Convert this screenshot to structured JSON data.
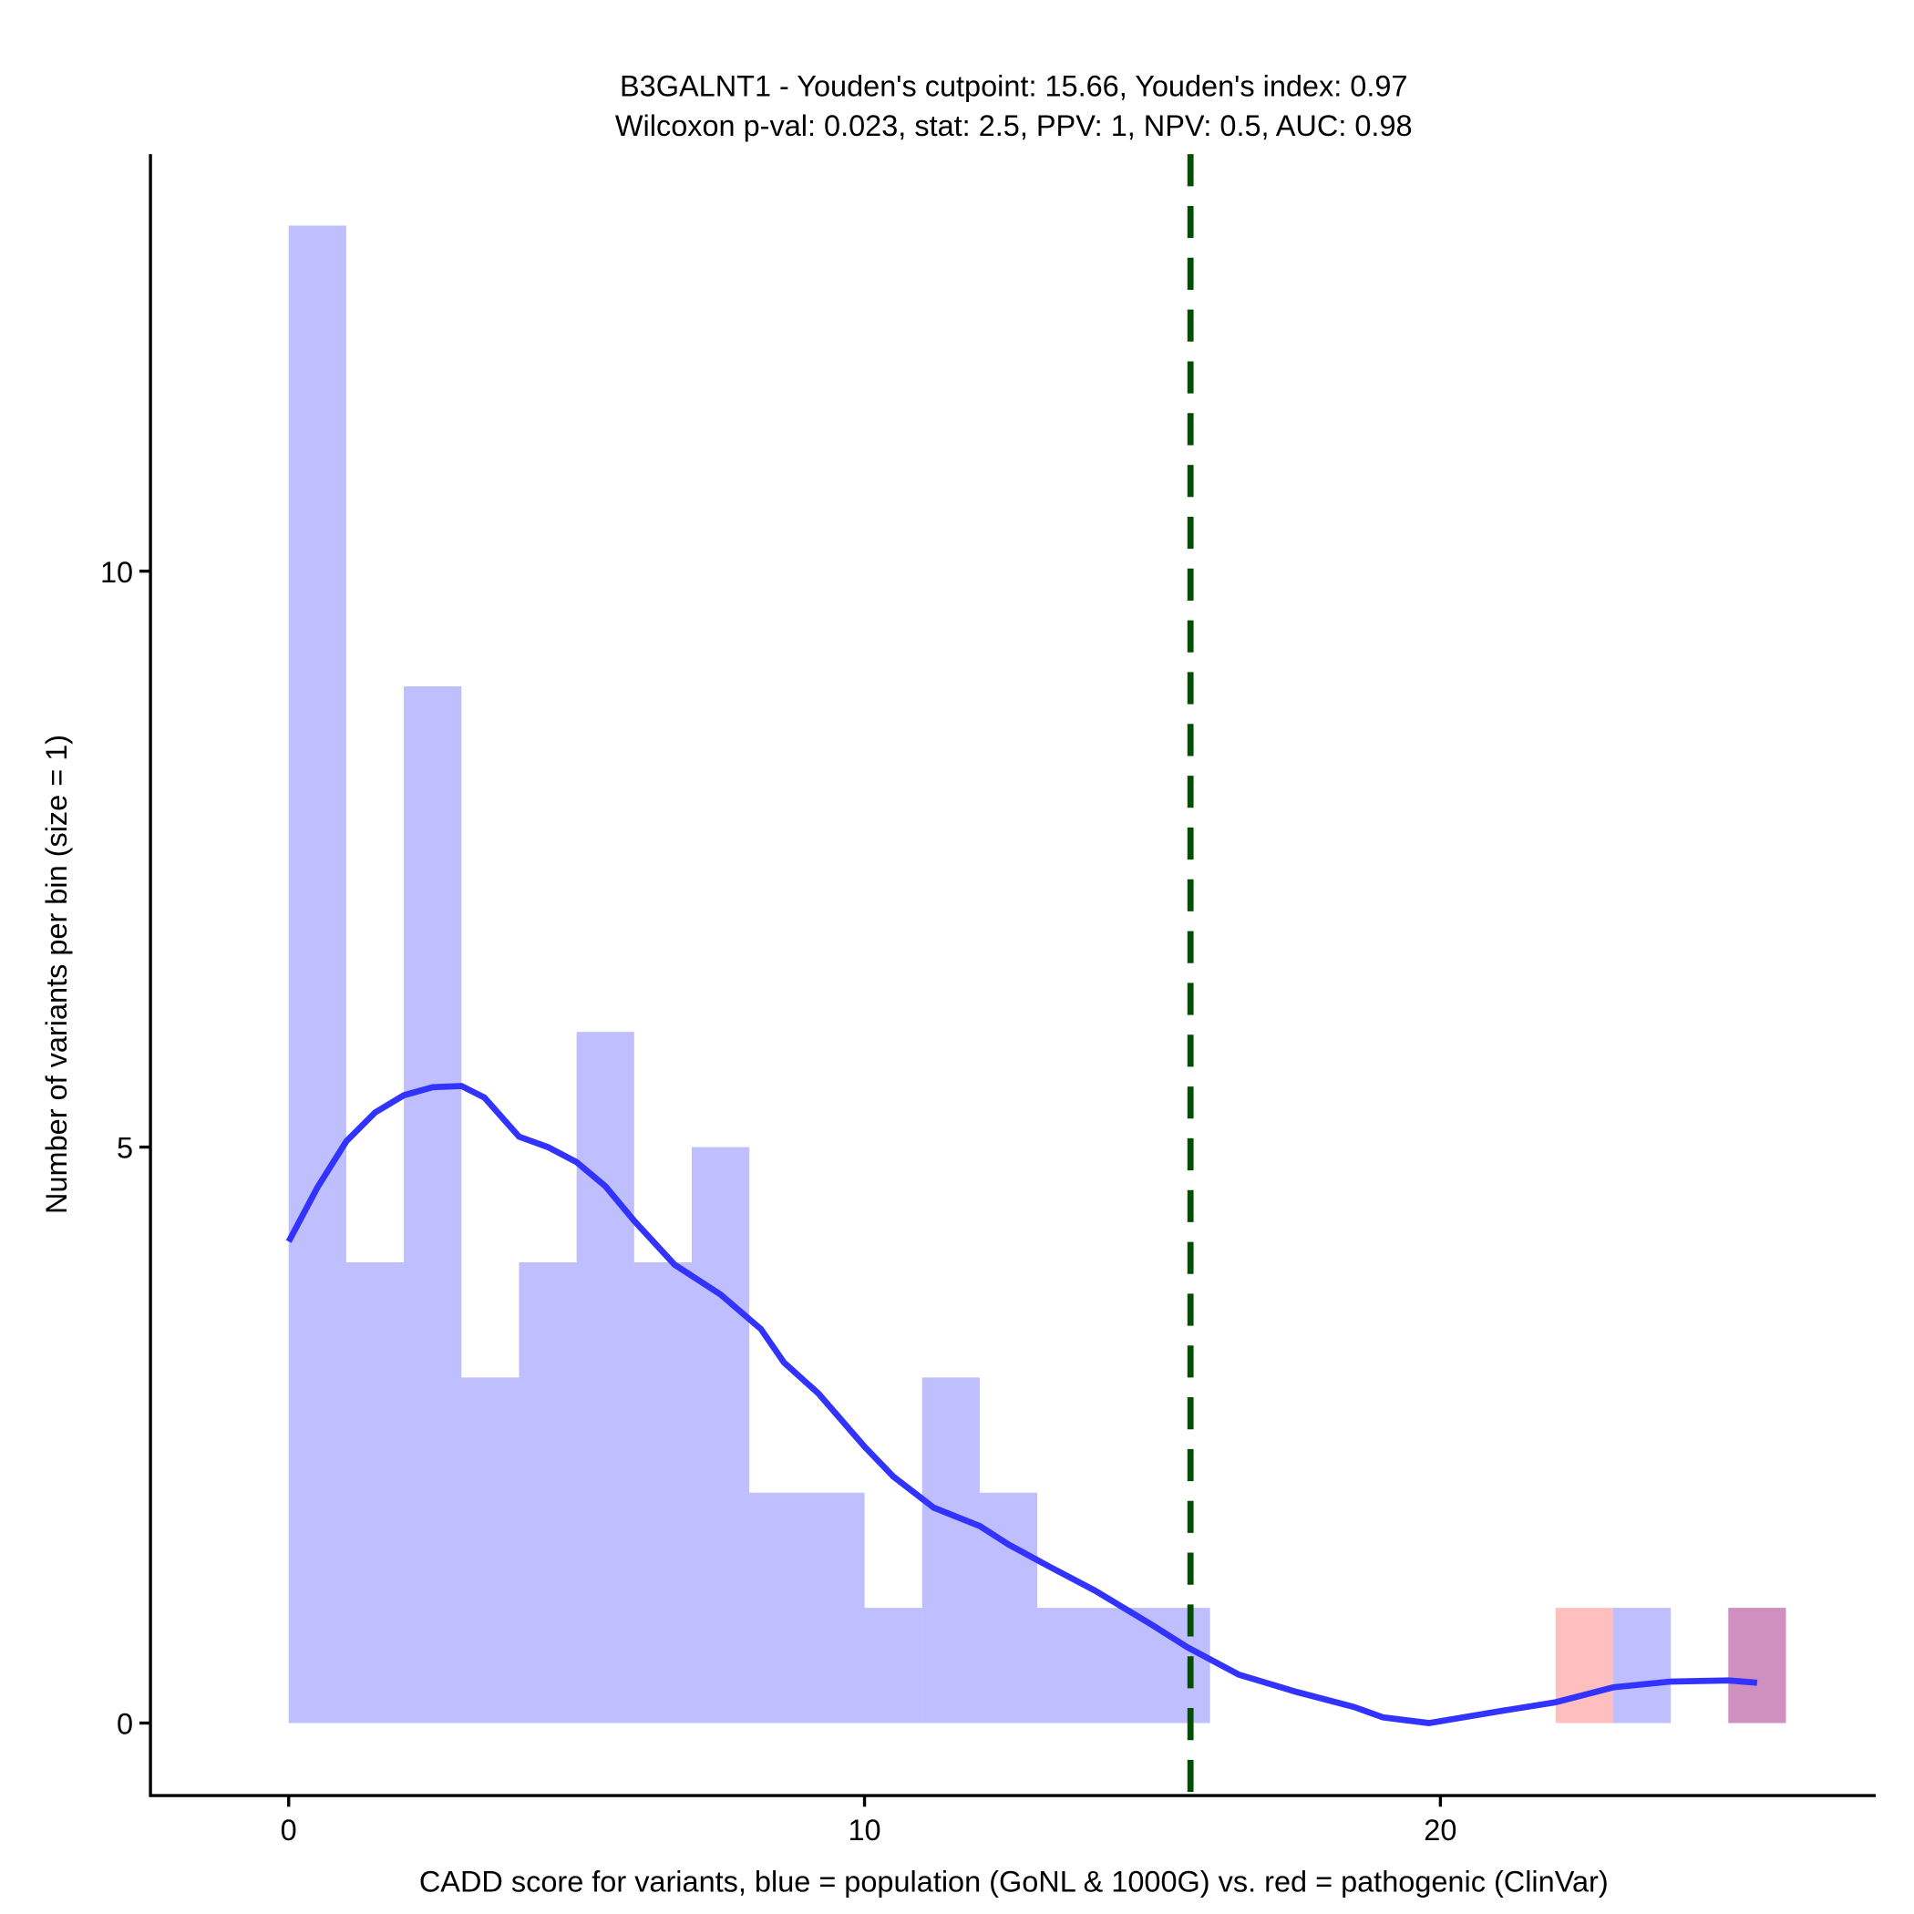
{
  "chart_data": {
    "type": "bar",
    "title_line1": "B3GALNT1 - Youden's cutpoint: 15.66, Youden's index: 0.97",
    "title_line2": "Wilcoxon p-val: 0.023, stat: 2.5, PPV: 1, NPV: 0.5, AUC: 0.98",
    "xlabel": "CADD score for variants, blue = population (GoNL & 1000G) vs. red = pathogenic (ClinVar)",
    "ylabel": "Number of variants per bin (size = 1)",
    "xlim": [
      -2.4,
      27.56
    ],
    "ylim": [
      -0.63,
      13.62
    ],
    "bin_width": 1,
    "x_ticks": [
      {
        "value": 0,
        "label": "0"
      },
      {
        "value": 10,
        "label": "10"
      },
      {
        "value": 20,
        "label": "20"
      }
    ],
    "y_ticks": [
      {
        "value": 0,
        "label": "0"
      },
      {
        "value": 5,
        "label": "5"
      },
      {
        "value": 10,
        "label": "10"
      }
    ],
    "series": [
      {
        "name": "population",
        "color": "#0000ff",
        "opacity": 0.25,
        "bins": [
          [
            0,
            13
          ],
          [
            1,
            4
          ],
          [
            2,
            9
          ],
          [
            3,
            3
          ],
          [
            4,
            4
          ],
          [
            5,
            6
          ],
          [
            6,
            4
          ],
          [
            7,
            5
          ],
          [
            8,
            2
          ],
          [
            9,
            2
          ],
          [
            10,
            1
          ],
          [
            11,
            3
          ],
          [
            12,
            2
          ],
          [
            13,
            1
          ],
          [
            14,
            1
          ],
          [
            15,
            1
          ],
          [
            23,
            1
          ],
          [
            25,
            1
          ]
        ]
      },
      {
        "name": "pathogenic",
        "color": "#ff0000",
        "opacity": 0.25,
        "bins": [
          [
            22,
            1
          ],
          [
            25,
            1
          ]
        ]
      }
    ],
    "density": {
      "color": "#3333ff",
      "points": [
        [
          0,
          4.18
        ],
        [
          0.5,
          4.65
        ],
        [
          1,
          5.05
        ],
        [
          1.5,
          5.3
        ],
        [
          2,
          5.45
        ],
        [
          2.5,
          5.52
        ],
        [
          3,
          5.53
        ],
        [
          3.4,
          5.43
        ],
        [
          4,
          5.09
        ],
        [
          4.5,
          5.0
        ],
        [
          5,
          4.87
        ],
        [
          5.5,
          4.66
        ],
        [
          6,
          4.36
        ],
        [
          6.7,
          3.98
        ],
        [
          7.5,
          3.72
        ],
        [
          8.2,
          3.42
        ],
        [
          8.6,
          3.13
        ],
        [
          9.2,
          2.86
        ],
        [
          10,
          2.4
        ],
        [
          10.5,
          2.14
        ],
        [
          11.2,
          1.87
        ],
        [
          12,
          1.71
        ],
        [
          12.5,
          1.55
        ],
        [
          13.2,
          1.36
        ],
        [
          14,
          1.15
        ],
        [
          15,
          0.85
        ],
        [
          15.6,
          0.66
        ],
        [
          16.5,
          0.42
        ],
        [
          17.5,
          0.27
        ],
        [
          18.5,
          0.14
        ],
        [
          19,
          0.05
        ],
        [
          19.8,
          0.0
        ],
        [
          21,
          0.1
        ],
        [
          22,
          0.18
        ],
        [
          23,
          0.31
        ],
        [
          24,
          0.36
        ],
        [
          25,
          0.37
        ],
        [
          25.5,
          0.35
        ]
      ]
    },
    "cutpoint": {
      "value": 15.66,
      "color": "#005000"
    }
  }
}
